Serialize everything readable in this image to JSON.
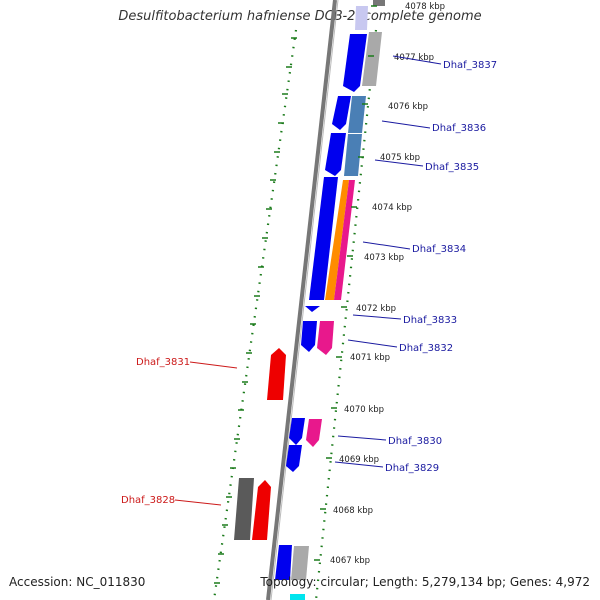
{
  "title": "Desulfitobacterium hafniense DCB-2, complete genome",
  "footer": {
    "accession": "Accession: NC_011830",
    "summary": "Topology: circular; Length: 5,279,134 bp; Genes: 4,972"
  },
  "ticks": [
    {
      "label": "4078 kbp"
    },
    {
      "label": "4077 kbp"
    },
    {
      "label": "4076 kbp"
    },
    {
      "label": "4075 kbp"
    },
    {
      "label": "4074 kbp"
    },
    {
      "label": "4073 kbp"
    },
    {
      "label": "4072 kbp"
    },
    {
      "label": "4071 kbp"
    },
    {
      "label": "4070 kbp"
    },
    {
      "label": "4069 kbp"
    },
    {
      "label": "4068 kbp"
    },
    {
      "label": "4067 kbp"
    }
  ],
  "gene_labels": [
    {
      "label": "Dhaf_3837",
      "color": "#1a1aa0"
    },
    {
      "label": "Dhaf_3836",
      "color": "#1a1aa0"
    },
    {
      "label": "Dhaf_3835",
      "color": "#1a1aa0"
    },
    {
      "label": "Dhaf_3834",
      "color": "#1a1aa0"
    },
    {
      "label": "Dhaf_3833",
      "color": "#1a1aa0"
    },
    {
      "label": "Dhaf_3832",
      "color": "#1a1aa0"
    },
    {
      "label": "Dhaf_3831",
      "color": "#cc1a1a"
    },
    {
      "label": "Dhaf_3830",
      "color": "#1a1aa0"
    },
    {
      "label": "Dhaf_3829",
      "color": "#1a1aa0"
    },
    {
      "label": "Dhaf_3828",
      "color": "#cc1a1a"
    }
  ],
  "colors": {
    "forward_cds": "#0000ee",
    "reverse_cds": "#ee0000",
    "gray_feature": "#9a9a9a",
    "steelblue_feature": "#4a7fb5",
    "orange_feature": "#ff8c00",
    "magenta_feature": "#e8188c",
    "cyan_feature": "#00e5ee",
    "lavender_feature": "#c8c8f0",
    "backbone": "#777777",
    "dotted_track": "#1a7a1a"
  }
}
